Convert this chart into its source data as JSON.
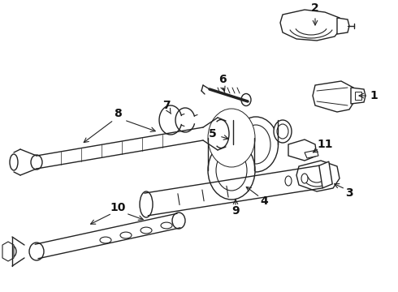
{
  "bg_color": "#ffffff",
  "line_color": "#222222",
  "label_color": "#111111",
  "label_fontsize": 10,
  "fig_width": 4.9,
  "fig_height": 3.6,
  "dpi": 100
}
